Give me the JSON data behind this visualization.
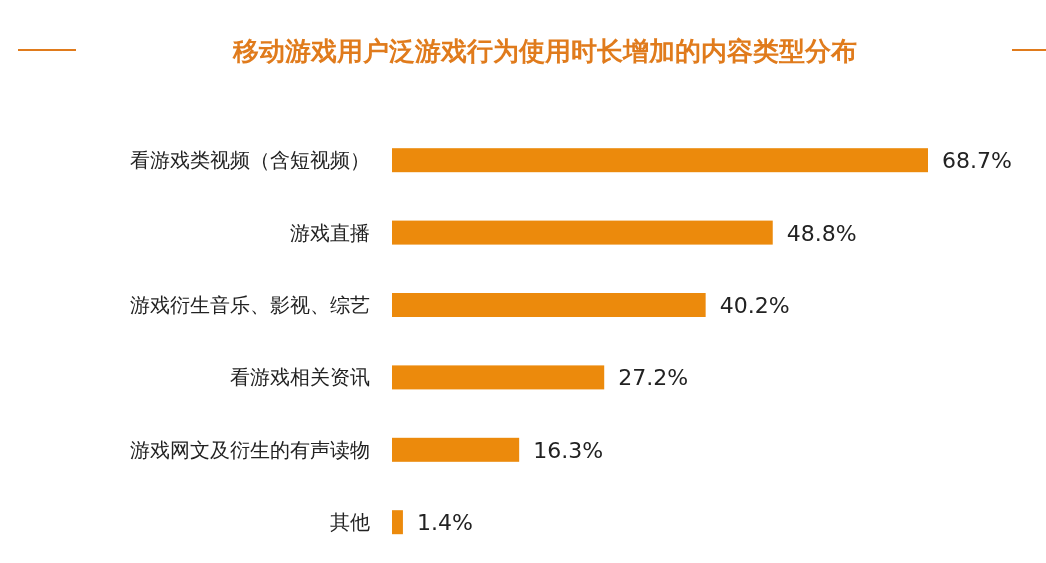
{
  "chart_data": {
    "type": "bar",
    "orientation": "horizontal",
    "title": "移动游戏用户泛游戏行为使用时长增加的内容类型分布",
    "categories": [
      "看游戏类视频（含短视频）",
      "游戏直播",
      "游戏衍生音乐、影视、综艺",
      "看游戏相关资讯",
      "游戏网文及衍生的有声读物",
      "其他"
    ],
    "values": [
      68.7,
      48.8,
      40.2,
      27.2,
      16.3,
      1.4
    ],
    "value_labels": [
      "68.7%",
      "48.8%",
      "40.2%",
      "27.2%",
      "16.3%",
      "1.4%"
    ],
    "color": "#ec8a0c"
  }
}
